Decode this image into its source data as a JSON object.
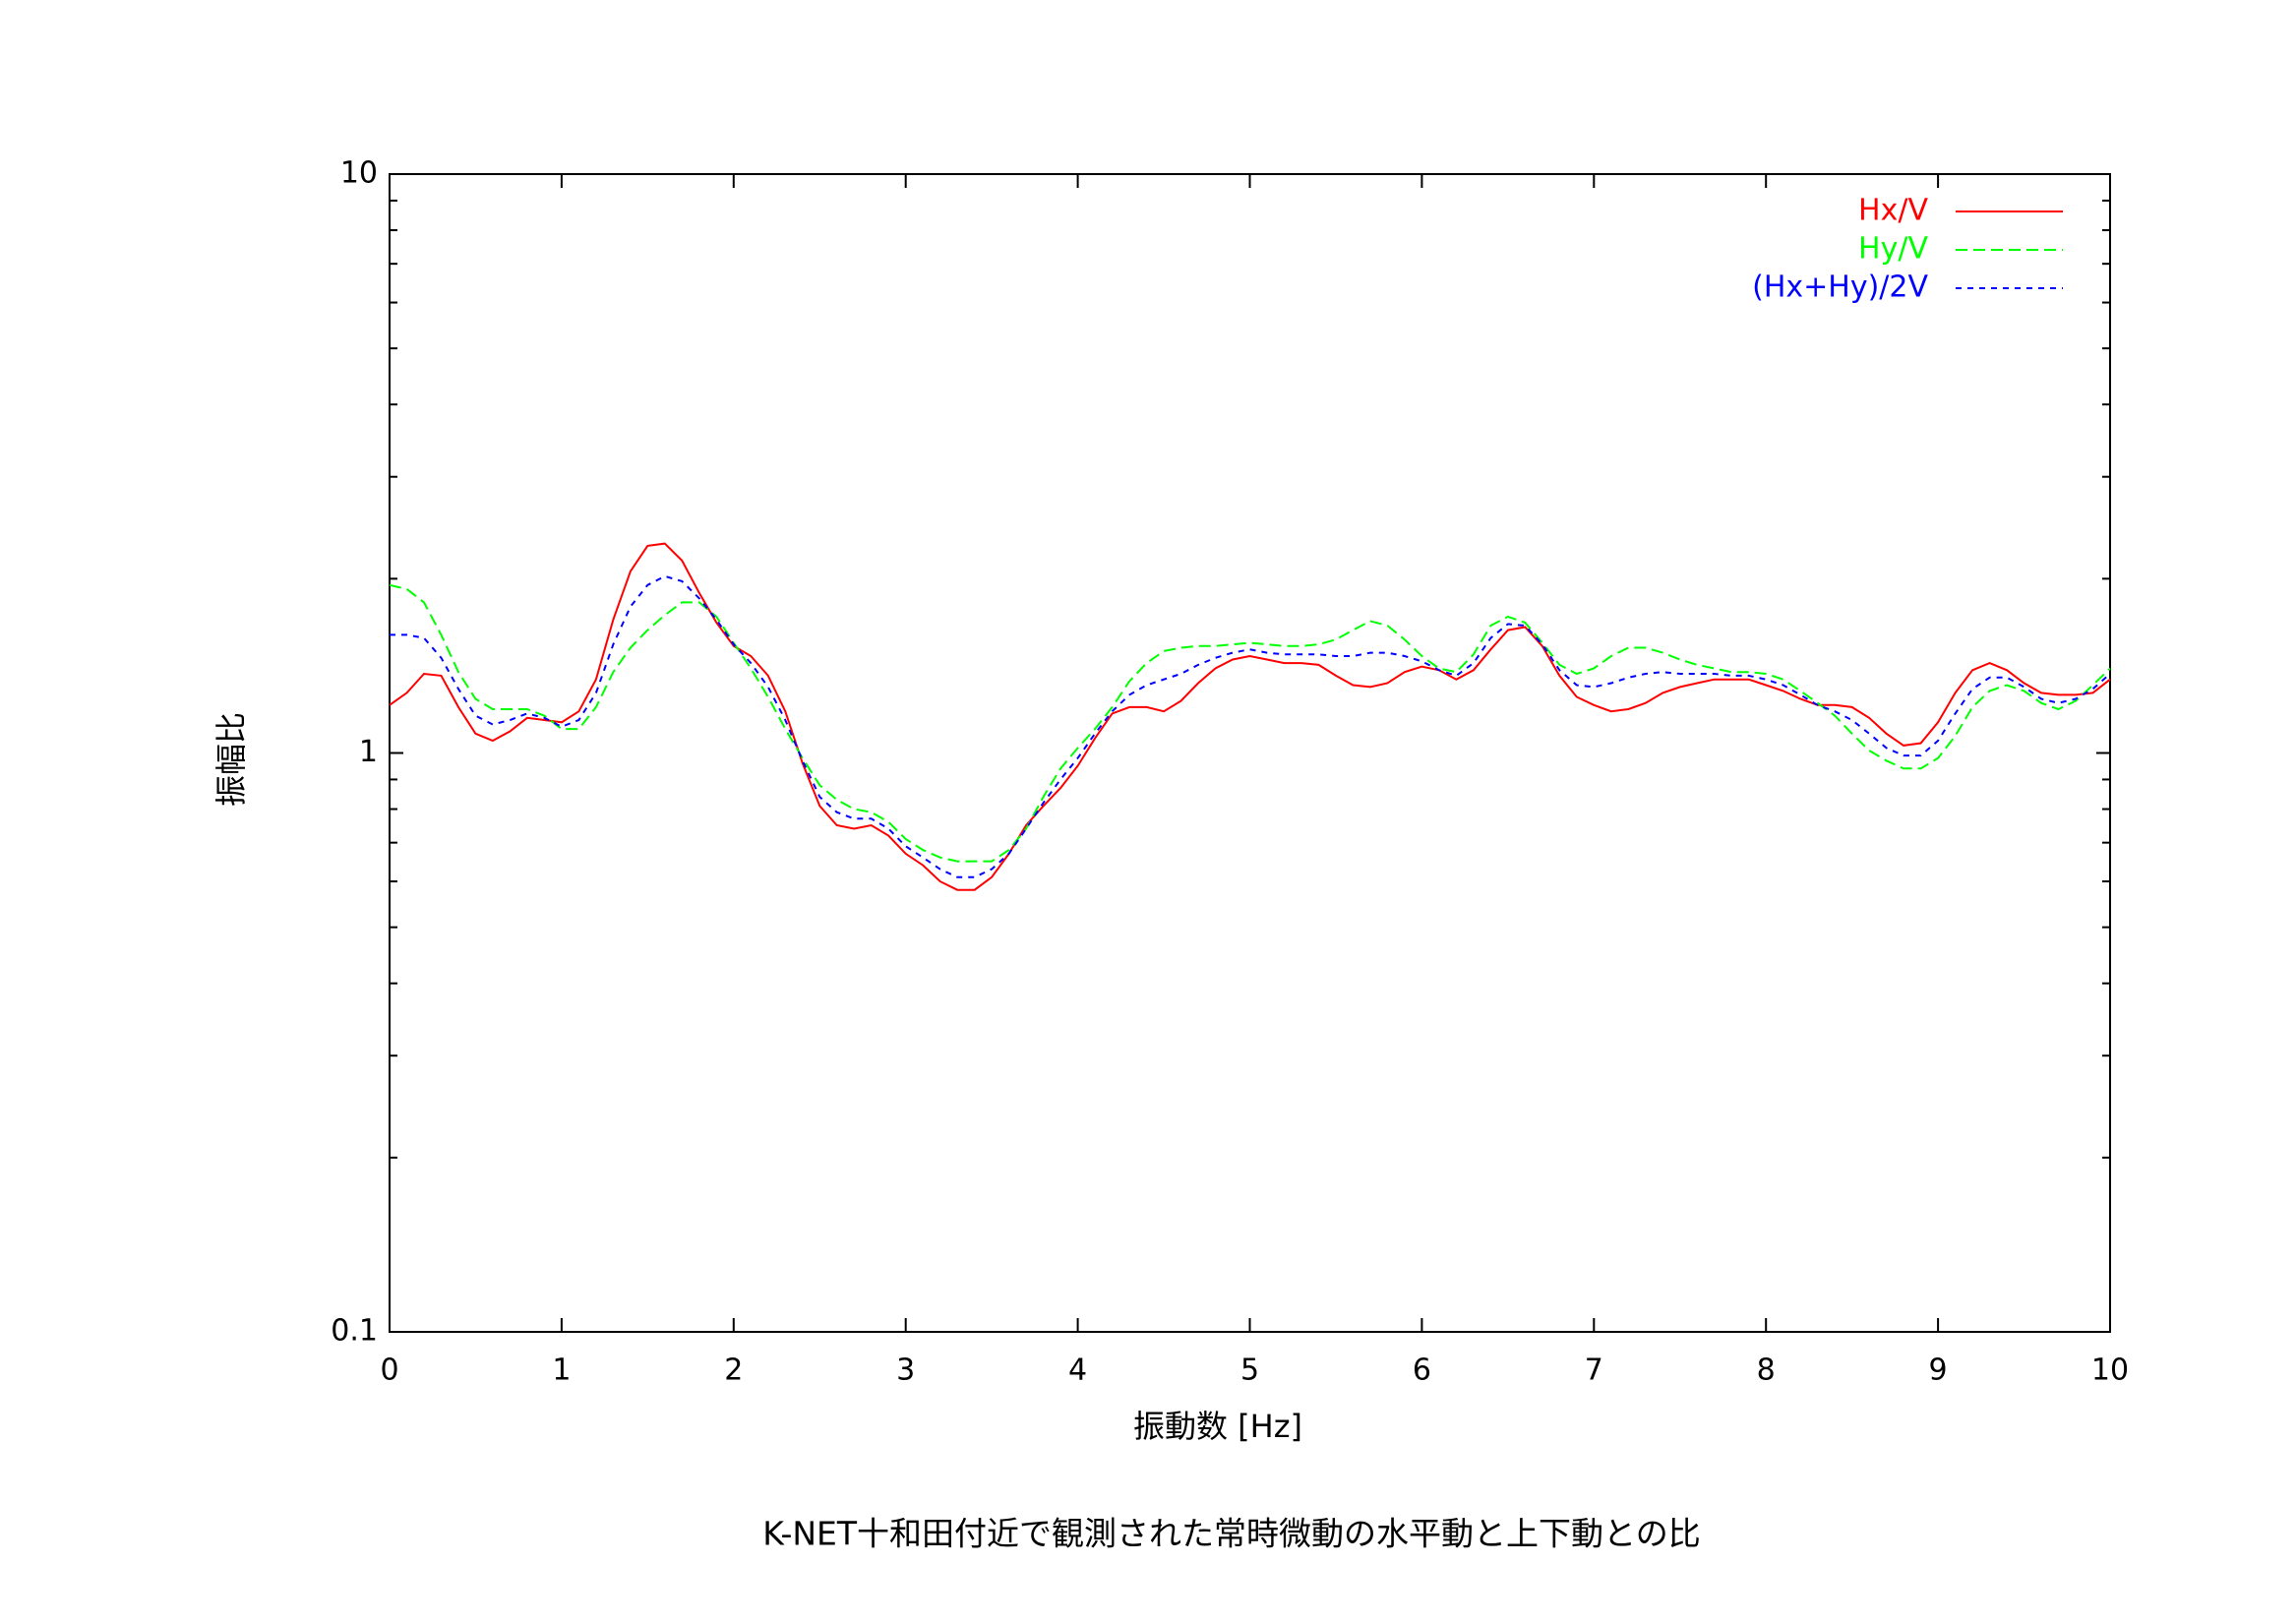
{
  "chart_data": {
    "type": "line",
    "title": "K-NET十和田付近で観測された常時微動の水平動と上下動との比",
    "xlabel": "振動数 [Hz]",
    "ylabel": "振幅比",
    "xlim": [
      0,
      10
    ],
    "xticks": [
      0,
      1,
      2,
      3,
      4,
      5,
      6,
      7,
      8,
      9,
      10
    ],
    "ylim": [
      0.1,
      10
    ],
    "yticks": [
      0.1,
      1,
      10
    ],
    "yminorticks": [
      0.2,
      0.3,
      0.4,
      0.5,
      0.6,
      0.7,
      0.8,
      0.9,
      2,
      3,
      4,
      5,
      6,
      7,
      8,
      9
    ],
    "log_y": true,
    "grid": false,
    "legend": "upper right",
    "x": [
      0,
      0.1,
      0.2,
      0.3,
      0.4,
      0.5,
      0.6,
      0.7,
      0.8,
      0.9,
      1,
      1.1,
      1.2,
      1.3,
      1.4,
      1.5,
      1.6,
      1.7,
      1.8,
      1.9,
      2,
      2.1,
      2.2,
      2.3,
      2.4,
      2.5,
      2.6,
      2.7,
      2.8,
      2.9,
      3,
      3.1,
      3.2,
      3.3,
      3.4,
      3.5,
      3.6,
      3.7,
      3.8,
      3.9,
      4,
      4.1,
      4.2,
      4.3,
      4.4,
      4.5,
      4.6,
      4.7,
      4.8,
      4.9,
      5,
      5.1,
      5.2,
      5.3,
      5.4,
      5.5,
      5.6,
      5.7,
      5.8,
      5.9,
      6,
      6.1,
      6.2,
      6.3,
      6.4,
      6.5,
      6.6,
      6.7,
      6.8,
      6.9,
      7,
      7.1,
      7.2,
      7.3,
      7.4,
      7.5,
      7.6,
      7.7,
      7.8,
      7.9,
      8,
      8.1,
      8.2,
      8.3,
      8.4,
      8.5,
      8.6,
      8.7,
      8.8,
      8.9,
      9,
      9.1,
      9.2,
      9.3,
      9.4,
      9.5,
      9.6,
      9.7,
      9.8,
      9.9,
      10
    ],
    "series": [
      {
        "name": "Hx/V",
        "color": "#ff0000",
        "dash": "solid",
        "values": [
          1.21,
          1.27,
          1.37,
          1.36,
          1.2,
          1.08,
          1.05,
          1.09,
          1.15,
          1.14,
          1.13,
          1.18,
          1.34,
          1.7,
          2.06,
          2.28,
          2.3,
          2.15,
          1.89,
          1.68,
          1.53,
          1.47,
          1.36,
          1.18,
          0.96,
          0.81,
          0.75,
          0.74,
          0.75,
          0.72,
          0.67,
          0.64,
          0.6,
          0.58,
          0.58,
          0.61,
          0.67,
          0.75,
          0.81,
          0.87,
          0.95,
          1.06,
          1.17,
          1.2,
          1.2,
          1.18,
          1.23,
          1.32,
          1.4,
          1.45,
          1.47,
          1.45,
          1.43,
          1.43,
          1.42,
          1.36,
          1.31,
          1.3,
          1.32,
          1.38,
          1.41,
          1.39,
          1.34,
          1.39,
          1.51,
          1.63,
          1.65,
          1.53,
          1.36,
          1.25,
          1.21,
          1.18,
          1.19,
          1.22,
          1.27,
          1.3,
          1.32,
          1.34,
          1.34,
          1.34,
          1.31,
          1.28,
          1.24,
          1.21,
          1.21,
          1.2,
          1.15,
          1.08,
          1.03,
          1.04,
          1.13,
          1.27,
          1.39,
          1.43,
          1.39,
          1.32,
          1.27,
          1.26,
          1.26,
          1.27,
          1.34
        ]
      },
      {
        "name": "Hy/V",
        "color": "#00ff00",
        "dash": "dashed",
        "values": [
          1.95,
          1.92,
          1.82,
          1.6,
          1.38,
          1.24,
          1.19,
          1.19,
          1.19,
          1.16,
          1.1,
          1.1,
          1.2,
          1.38,
          1.52,
          1.63,
          1.73,
          1.82,
          1.82,
          1.72,
          1.55,
          1.4,
          1.25,
          1.1,
          0.98,
          0.88,
          0.83,
          0.8,
          0.79,
          0.76,
          0.71,
          0.68,
          0.66,
          0.65,
          0.65,
          0.65,
          0.68,
          0.74,
          0.84,
          0.94,
          1.02,
          1.1,
          1.2,
          1.33,
          1.43,
          1.5,
          1.52,
          1.53,
          1.53,
          1.54,
          1.55,
          1.54,
          1.53,
          1.53,
          1.54,
          1.57,
          1.63,
          1.69,
          1.66,
          1.57,
          1.47,
          1.4,
          1.38,
          1.48,
          1.66,
          1.72,
          1.68,
          1.55,
          1.42,
          1.37,
          1.4,
          1.47,
          1.52,
          1.52,
          1.49,
          1.45,
          1.42,
          1.4,
          1.38,
          1.38,
          1.37,
          1.34,
          1.28,
          1.22,
          1.16,
          1.08,
          1.01,
          0.97,
          0.94,
          0.94,
          0.98,
          1.07,
          1.2,
          1.28,
          1.31,
          1.28,
          1.22,
          1.19,
          1.23,
          1.31,
          1.4
        ]
      },
      {
        "name": "(Hx+Hy)/2V",
        "color": "#0000ff",
        "dash": "dotted",
        "values": [
          1.6,
          1.6,
          1.58,
          1.46,
          1.29,
          1.16,
          1.12,
          1.14,
          1.17,
          1.15,
          1.11,
          1.14,
          1.27,
          1.54,
          1.79,
          1.95,
          2.02,
          1.98,
          1.85,
          1.7,
          1.54,
          1.43,
          1.3,
          1.14,
          0.97,
          0.84,
          0.79,
          0.77,
          0.77,
          0.74,
          0.69,
          0.66,
          0.63,
          0.61,
          0.61,
          0.63,
          0.67,
          0.74,
          0.82,
          0.9,
          0.98,
          1.08,
          1.18,
          1.26,
          1.31,
          1.34,
          1.37,
          1.42,
          1.46,
          1.49,
          1.51,
          1.49,
          1.48,
          1.48,
          1.48,
          1.47,
          1.47,
          1.49,
          1.49,
          1.47,
          1.44,
          1.39,
          1.36,
          1.43,
          1.58,
          1.67,
          1.66,
          1.54,
          1.39,
          1.31,
          1.3,
          1.32,
          1.35,
          1.37,
          1.38,
          1.37,
          1.37,
          1.37,
          1.36,
          1.36,
          1.34,
          1.31,
          1.26,
          1.21,
          1.18,
          1.14,
          1.08,
          1.02,
          0.99,
          0.99,
          1.05,
          1.17,
          1.29,
          1.35,
          1.35,
          1.3,
          1.24,
          1.22,
          1.24,
          1.29,
          1.37
        ]
      }
    ]
  }
}
